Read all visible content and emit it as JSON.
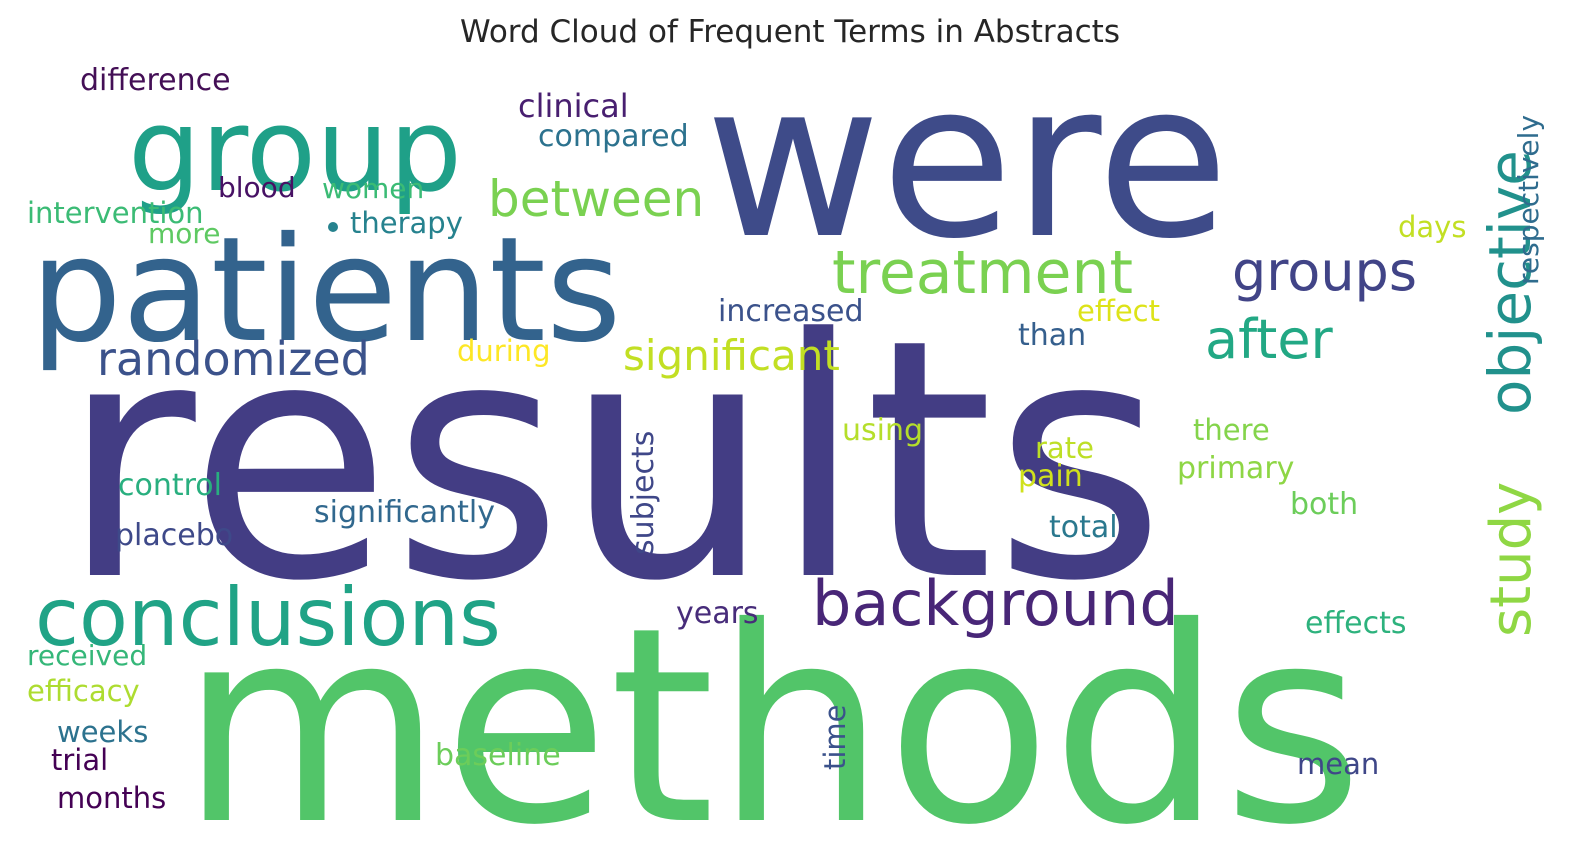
{
  "chart_data": {
    "type": "wordcloud",
    "title": "Word Cloud of Frequent Terms in Abstracts",
    "background": "#ffffff",
    "colormap": "viridis",
    "words": [
      {
        "text": "results",
        "rank": 1,
        "color": "#433d84"
      },
      {
        "text": "were",
        "rank": 2,
        "color": "#3e4b89"
      },
      {
        "text": "methods",
        "rank": 3,
        "color": "#52c569"
      },
      {
        "text": "patients",
        "rank": 4,
        "color": "#33638d"
      },
      {
        "text": "group",
        "rank": 5,
        "color": "#1fa088"
      },
      {
        "text": "conclusions",
        "rank": 6,
        "color": "#20a386"
      },
      {
        "text": "background",
        "rank": 7,
        "color": "#482677"
      },
      {
        "text": "treatment",
        "rank": 8,
        "color": "#7ad151"
      },
      {
        "text": "objective",
        "rank": 9,
        "color": "#21918c"
      },
      {
        "text": "study",
        "rank": 10,
        "color": "#8fd744"
      },
      {
        "text": "groups",
        "rank": 11,
        "color": "#414487"
      },
      {
        "text": "after",
        "rank": 12,
        "color": "#22a884"
      },
      {
        "text": "between",
        "rank": 13,
        "color": "#7ad151"
      },
      {
        "text": "randomized",
        "rank": 14,
        "color": "#3b528b"
      },
      {
        "text": "significant",
        "rank": 15,
        "color": "#c2df23"
      },
      {
        "text": "clinical",
        "rank": 16,
        "color": "#481f70"
      },
      {
        "text": "compared",
        "rank": 17,
        "color": "#2c728e"
      },
      {
        "text": "difference",
        "rank": 18,
        "color": "#440f56"
      },
      {
        "text": "respectively",
        "rank": 19,
        "color": "#2f6c8e"
      },
      {
        "text": "blood",
        "rank": 20,
        "color": "#471164"
      },
      {
        "text": "women",
        "rank": 21,
        "color": "#3bbb75"
      },
      {
        "text": "intervention",
        "rank": 22,
        "color": "#3bbb75"
      },
      {
        "text": "therapy",
        "rank": 23,
        "color": "#26828e"
      },
      {
        "text": "more",
        "rank": 24,
        "color": "#5ec962"
      },
      {
        "text": "days",
        "rank": 25,
        "color": "#c2df23"
      },
      {
        "text": "increased",
        "rank": 26,
        "color": "#3b528b"
      },
      {
        "text": "effect",
        "rank": 27,
        "color": "#dde318"
      },
      {
        "text": "during",
        "rank": 28,
        "color": "#fde725"
      },
      {
        "text": "than",
        "rank": 29,
        "color": "#355f8d"
      },
      {
        "text": "using",
        "rank": 30,
        "color": "#b5de2b"
      },
      {
        "text": "there",
        "rank": 31,
        "color": "#84d44b"
      },
      {
        "text": "rate",
        "rank": 32,
        "color": "#bddf26"
      },
      {
        "text": "pain",
        "rank": 33,
        "color": "#d0e11c"
      },
      {
        "text": "primary",
        "rank": 34,
        "color": "#8ed645"
      },
      {
        "text": "control",
        "rank": 35,
        "color": "#29af7f"
      },
      {
        "text": "subjects",
        "rank": 36,
        "color": "#3f4788"
      },
      {
        "text": "significantly",
        "rank": 37,
        "color": "#31688e"
      },
      {
        "text": "placebo",
        "rank": 38,
        "color": "#3e4989"
      },
      {
        "text": "both",
        "rank": 39,
        "color": "#6ccd5a"
      },
      {
        "text": "total",
        "rank": 40,
        "color": "#2a788e"
      },
      {
        "text": "years",
        "rank": 41,
        "color": "#472c7a"
      },
      {
        "text": "effects",
        "rank": 42,
        "color": "#2db27d"
      },
      {
        "text": "received",
        "rank": 43,
        "color": "#35b779"
      },
      {
        "text": "efficacy",
        "rank": 44,
        "color": "#addc30"
      },
      {
        "text": "weeks",
        "rank": 45,
        "color": "#2c728e"
      },
      {
        "text": "trial",
        "rank": 46,
        "color": "#440154"
      },
      {
        "text": "months",
        "rank": 47,
        "color": "#440154"
      },
      {
        "text": "baseline",
        "rank": 48,
        "color": "#6ccd5a"
      },
      {
        "text": "time",
        "rank": 49,
        "color": "#3b528b"
      },
      {
        "text": "mean",
        "rank": 50,
        "color": "#3f4788"
      }
    ]
  }
}
